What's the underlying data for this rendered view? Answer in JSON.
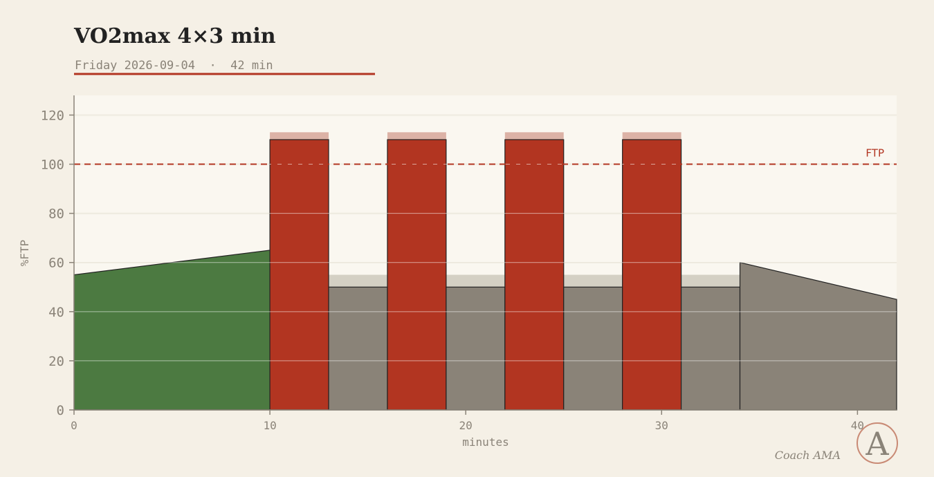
{
  "header": {
    "title": "VO2max 4×3 min",
    "subtitle": "Friday 2026-09-04  ·  42 min"
  },
  "colors": {
    "background": "#f5f0e6",
    "plot_background": "#faf7f0",
    "warmup": "#4c7a41",
    "interval": "#b23521",
    "interval_target": "#dcb2a6",
    "recovery": "#8a8378",
    "recovery_target": "#d4d0c4",
    "grid": "#ddd8c4",
    "ftp_line": "#b23521",
    "text_muted": "#8a8378",
    "title": "#222222"
  },
  "chart_data": {
    "type": "area",
    "title": "VO2max 4×3 min",
    "xlabel": "minutes",
    "ylabel": "%FTP",
    "xlim": [
      0,
      42
    ],
    "ylim": [
      0,
      128
    ],
    "xticks": [
      0,
      10,
      20,
      30,
      40
    ],
    "yticks": [
      0,
      20,
      40,
      60,
      80,
      100,
      120
    ],
    "grid": true,
    "reference_line": {
      "label": "FTP",
      "value": 100
    },
    "segments": [
      {
        "kind": "warmup",
        "start": 0,
        "end": 10,
        "from": 55,
        "to": 65
      },
      {
        "kind": "interval",
        "start": 10,
        "end": 13,
        "value": 110,
        "target_max": 113
      },
      {
        "kind": "recovery",
        "start": 13,
        "end": 16,
        "value": 50,
        "target_max": 55
      },
      {
        "kind": "interval",
        "start": 16,
        "end": 19,
        "value": 110,
        "target_max": 113
      },
      {
        "kind": "recovery",
        "start": 19,
        "end": 22,
        "value": 50,
        "target_max": 55
      },
      {
        "kind": "interval",
        "start": 22,
        "end": 25,
        "value": 110,
        "target_max": 113
      },
      {
        "kind": "recovery",
        "start": 25,
        "end": 28,
        "value": 50,
        "target_max": 55
      },
      {
        "kind": "interval",
        "start": 28,
        "end": 31,
        "value": 110,
        "target_max": 113
      },
      {
        "kind": "recovery",
        "start": 31,
        "end": 34,
        "value": 50,
        "target_max": 55
      },
      {
        "kind": "cooldown",
        "start": 34,
        "end": 42,
        "from": 60,
        "to": 45
      }
    ]
  },
  "brand": {
    "name": "Coach AMA",
    "monogram": "A"
  }
}
